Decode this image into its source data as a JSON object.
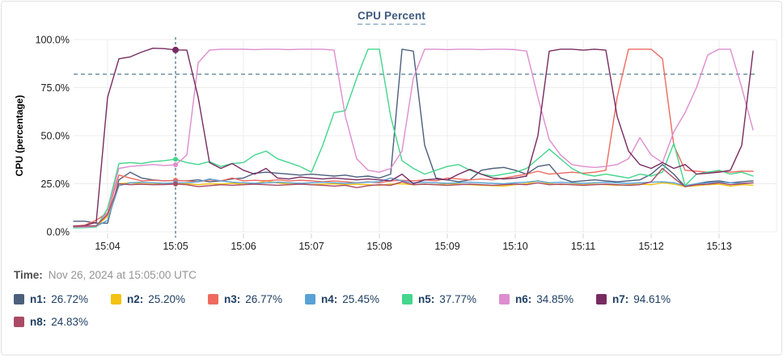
{
  "panel": {
    "title": "CPU Percent"
  },
  "time_row": {
    "label": "Time:",
    "value": "Nov 26, 2024 at 15:05:00 UTC"
  },
  "chart_data": {
    "type": "line",
    "title": "CPU Percent",
    "ylabel": "CPU (percentage)",
    "ylim": [
      0,
      100
    ],
    "yticks": [
      0,
      25,
      50,
      75,
      100
    ],
    "ytick_labels": [
      "0.0%",
      "25.0%",
      "50.0%",
      "75.0%",
      "100.0%"
    ],
    "xtick_labels": [
      "15:04",
      "15:05",
      "15:06",
      "15:07",
      "15:08",
      "15:09",
      "15:10",
      "15:11",
      "15:12",
      "15:13"
    ],
    "start_time": "15:03:30",
    "interval_seconds": 10,
    "grid": true,
    "legend_position": "bottom",
    "threshold_percent": 82,
    "crosshair_time": "15:05:00",
    "crosshair_index": 9,
    "colors": {
      "grid": "#ececec",
      "tick": "#d4d4d4",
      "threshold_line": "#537e93",
      "crosshair_line": "#3f6c80",
      "title_text": "#3e5a7e",
      "legend_text": "#1e3f63"
    },
    "series": [
      {
        "name": "n1",
        "color": "#4c5f7d",
        "value": "26.72%",
        "crosshair_value": 26.72,
        "values": [
          5.5,
          5.5,
          4.5,
          4.5,
          27,
          31,
          28,
          27,
          26.5,
          26.72,
          26.5,
          27,
          26,
          26.5,
          27.5,
          28,
          30.5,
          31,
          30.5,
          30,
          29.5,
          30,
          29.5,
          29,
          29.5,
          28.5,
          29,
          28,
          30,
          95,
          94,
          45,
          28,
          27,
          26,
          27,
          32,
          33,
          33.5,
          32,
          30,
          34,
          35,
          28,
          26,
          26.5,
          27,
          26.5,
          26,
          26.5,
          27,
          30,
          35,
          30,
          23.5,
          25,
          26,
          26.5,
          25.5,
          26,
          26.5
        ]
      },
      {
        "name": "n2",
        "color": "#f3c212",
        "value": "25.20%",
        "crosshair_value": 25.2,
        "values": [
          2.5,
          2.5,
          3,
          8,
          25,
          25.5,
          25,
          24.8,
          25,
          25.2,
          25,
          24.5,
          25,
          24.8,
          25.2,
          24.8,
          25,
          26.5,
          25.5,
          24.8,
          25,
          24.5,
          24.8,
          25,
          24.5,
          24.8,
          24.5,
          24.2,
          24.8,
          25,
          24.5,
          24.8,
          24.5,
          25,
          24.8,
          24.5,
          24.2,
          24,
          23.8,
          24.5,
          25,
          26.5,
          25,
          24.5,
          24.8,
          24.5,
          24.8,
          24.5,
          24.2,
          24.5,
          24.8,
          24.5,
          25.5,
          24.8,
          23.5,
          24,
          24.5,
          24.8,
          23.8,
          24.5,
          24.3
        ]
      },
      {
        "name": "n3",
        "color": "#ee6a60",
        "value": "26.77%",
        "crosshair_value": 26.77,
        "values": [
          3,
          3.5,
          6,
          10,
          29.5,
          28,
          26.5,
          26.8,
          26.5,
          26.77,
          26.5,
          26,
          27,
          26.5,
          28,
          26.5,
          26.8,
          26.5,
          27,
          26.5,
          26.8,
          26.5,
          26,
          26.5,
          26,
          25.5,
          26,
          25.5,
          26.5,
          26.8,
          26.5,
          27,
          26.5,
          28,
          27.5,
          27,
          27.5,
          27,
          28,
          29,
          30,
          31.5,
          30,
          30.5,
          31,
          30.5,
          31,
          32,
          70,
          95,
          95,
          95,
          90,
          45,
          32,
          31.5,
          31,
          31.5,
          31,
          31.5,
          31.5
        ]
      },
      {
        "name": "n4",
        "color": "#58a2d6",
        "value": "25.45%",
        "crosshair_value": 25.45,
        "values": [
          2.5,
          2.5,
          2.8,
          6,
          24,
          25.5,
          25.8,
          25.5,
          25.2,
          25.45,
          25.5,
          26,
          27.5,
          26.5,
          25.8,
          25.5,
          25.2,
          25.5,
          25.8,
          25.5,
          25.2,
          25.5,
          25.8,
          25.5,
          25.2,
          25.5,
          25.8,
          26,
          28,
          26.5,
          25.5,
          25.8,
          25.5,
          25.2,
          25.5,
          25.8,
          25.5,
          25.2,
          25,
          25.5,
          25.8,
          26.5,
          25.5,
          25.8,
          25.5,
          25.2,
          25.5,
          25.8,
          25.5,
          25.2,
          25.5,
          25.8,
          26,
          25.5,
          24,
          25,
          25.5,
          25.8,
          25.5,
          25.2,
          25.5
        ]
      },
      {
        "name": "n5",
        "color": "#43d68c",
        "value": "37.77%",
        "crosshair_value": 37.77,
        "values": [
          2,
          2.2,
          2.5,
          12,
          35.5,
          36,
          35.5,
          36.5,
          37,
          37.77,
          36,
          35,
          36.5,
          34,
          35.5,
          36,
          40,
          42,
          38,
          36,
          34,
          31,
          45,
          62,
          63,
          80,
          95,
          95,
          60,
          37,
          33,
          30,
          32,
          34,
          35,
          32,
          30,
          29,
          30,
          31,
          33,
          38,
          43,
          38,
          33,
          30,
          29,
          30,
          29,
          28,
          30,
          29,
          31,
          46,
          24,
          30,
          31,
          32,
          30,
          31,
          29
        ]
      },
      {
        "name": "n6",
        "color": "#de8dcf",
        "value": "34.85%",
        "crosshair_value": 34.85,
        "values": [
          2.5,
          2.5,
          3,
          10,
          33,
          34,
          34.5,
          35,
          34.5,
          34.85,
          40,
          88,
          94.5,
          95,
          95,
          95,
          94.8,
          95,
          95,
          94.8,
          95,
          95,
          95,
          94.5,
          60,
          38,
          32,
          31,
          33,
          42,
          80,
          95,
          95,
          94.8,
          95,
          95,
          94.8,
          95,
          95,
          94.8,
          94,
          70,
          48,
          40,
          35,
          34,
          33.5,
          34,
          35,
          38,
          49,
          40,
          36,
          52,
          62,
          75,
          92,
          95,
          95,
          75,
          53
        ]
      },
      {
        "name": "n7",
        "color": "#772c61",
        "value": "94.61%",
        "crosshair_value": 94.61,
        "values": [
          3,
          3.2,
          5,
          70,
          90,
          91,
          93.5,
          95.5,
          95.3,
          94.61,
          94.5,
          70,
          36,
          33,
          35.5,
          32,
          30,
          33,
          28,
          27.5,
          28.5,
          28,
          27.5,
          28,
          27.5,
          27,
          27.5,
          27,
          26.5,
          30,
          25,
          27,
          27.5,
          27,
          30,
          32.5,
          30,
          28,
          27.5,
          28,
          29,
          50,
          94,
          95,
          95,
          94.5,
          95,
          94.5,
          60,
          42,
          35,
          33,
          36,
          33,
          35,
          30,
          30.5,
          31,
          32,
          45,
          94
        ]
      },
      {
        "name": "n8",
        "color": "#ab4a66",
        "value": "24.83%",
        "crosshair_value": 24.83,
        "values": [
          2.8,
          3,
          3.2,
          9,
          25,
          24.5,
          24.8,
          24.5,
          24.6,
          24.83,
          24.5,
          23.5,
          24,
          24.5,
          24.2,
          24.5,
          24.8,
          24.5,
          24.2,
          24.5,
          24.8,
          24.5,
          24.2,
          23.8,
          24.2,
          23,
          24,
          24.5,
          24.2,
          26,
          24.5,
          24.8,
          24.5,
          24.2,
          24.5,
          24.8,
          24.5,
          24.2,
          24.5,
          24.8,
          24.5,
          25.5,
          24.5,
          24.8,
          24.5,
          24.2,
          24.5,
          24.8,
          24.5,
          24.2,
          24.5,
          26,
          33,
          28,
          23.5,
          24.5,
          24.8,
          25.5,
          24.5,
          25,
          25.5
        ]
      }
    ]
  }
}
